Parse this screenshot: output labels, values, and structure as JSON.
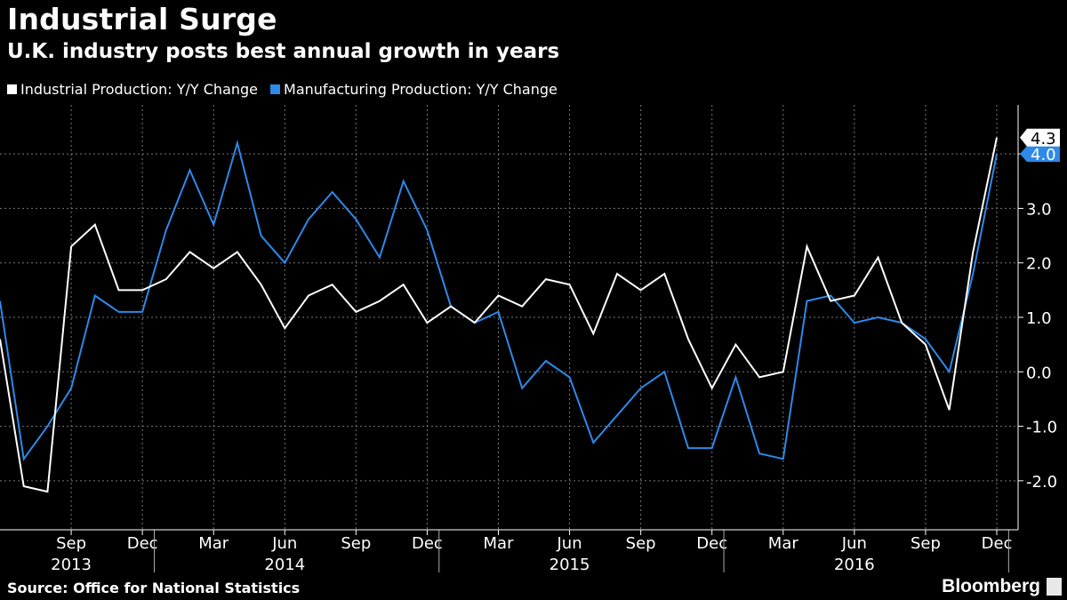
{
  "title": "Industrial Surge",
  "subtitle": "U.K. industry posts best annual growth in years",
  "source": "Source: Office for National Statistics",
  "brand": "Bloomberg",
  "chart_data": {
    "type": "line",
    "title": "Industrial Surge",
    "subtitle": "U.K. industry posts best annual growth in years",
    "x": [
      "2013-06",
      "2013-07",
      "2013-08",
      "2013-09",
      "2013-10",
      "2013-11",
      "2013-12",
      "2014-01",
      "2014-02",
      "2014-03",
      "2014-04",
      "2014-05",
      "2014-06",
      "2014-07",
      "2014-08",
      "2014-09",
      "2014-10",
      "2014-11",
      "2014-12",
      "2015-01",
      "2015-02",
      "2015-03",
      "2015-04",
      "2015-05",
      "2015-06",
      "2015-07",
      "2015-08",
      "2015-09",
      "2015-10",
      "2015-11",
      "2015-12",
      "2016-01",
      "2016-02",
      "2016-03",
      "2016-04",
      "2016-05",
      "2016-06",
      "2016-07",
      "2016-08",
      "2016-09",
      "2016-10",
      "2016-11",
      "2016-12"
    ],
    "series": [
      {
        "name": "Industrial Production: Y/Y Change",
        "color": "#ffffff",
        "values": [
          0.6,
          -2.1,
          -2.2,
          2.3,
          2.7,
          1.5,
          1.5,
          1.7,
          2.2,
          1.9,
          2.2,
          1.6,
          0.8,
          1.4,
          1.6,
          1.1,
          1.3,
          1.6,
          0.9,
          1.2,
          0.9,
          1.4,
          1.2,
          1.7,
          1.6,
          0.7,
          1.8,
          1.5,
          1.8,
          0.6,
          -0.3,
          0.5,
          -0.1,
          0.0,
          2.3,
          1.3,
          1.4,
          2.1,
          0.9,
          0.5,
          -0.7,
          2.2,
          4.3
        ]
      },
      {
        "name": "Manufacturing Production: Y/Y Change",
        "color": "#2e89e8",
        "values": [
          1.3,
          -1.6,
          -1.0,
          -0.3,
          1.4,
          1.1,
          1.1,
          2.6,
          3.7,
          2.7,
          4.2,
          2.5,
          2.0,
          2.8,
          3.3,
          2.8,
          2.1,
          3.5,
          2.6,
          1.2,
          0.9,
          1.1,
          -0.3,
          0.2,
          -0.1,
          -1.3,
          -0.8,
          -0.3,
          0.0,
          -1.4,
          -1.4,
          -0.1,
          -1.5,
          -1.6,
          1.3,
          1.4,
          0.9,
          1.0,
          0.9,
          0.6,
          0.0,
          1.8,
          4.0
        ]
      }
    ],
    "y_ticks": [
      "4.0",
      "3.0",
      "2.0",
      "1.0",
      "0.0",
      "-1.0",
      "-2.0"
    ],
    "y_tick_values": [
      4,
      3,
      2,
      1,
      0,
      -1,
      -2
    ],
    "ylim": [
      -2.9,
      4.9
    ],
    "x_ticks": [
      {
        "label": "Sep",
        "index": 3
      },
      {
        "label": "Dec",
        "index": 6
      },
      {
        "label": "Mar",
        "index": 9
      },
      {
        "label": "Jun",
        "index": 12
      },
      {
        "label": "Sep",
        "index": 15
      },
      {
        "label": "Dec",
        "index": 18
      },
      {
        "label": "Mar",
        "index": 21
      },
      {
        "label": "Jun",
        "index": 24
      },
      {
        "label": "Sep",
        "index": 27
      },
      {
        "label": "Dec",
        "index": 30
      },
      {
        "label": "Mar",
        "index": 33
      },
      {
        "label": "Jun",
        "index": 36
      },
      {
        "label": "Sep",
        "index": 39
      },
      {
        "label": "Dec",
        "index": 42
      }
    ],
    "year_labels": [
      {
        "label": "2013",
        "center_index": 3
      },
      {
        "label": "2014",
        "center_index": 12
      },
      {
        "label": "2015",
        "center_index": 24
      },
      {
        "label": "2016",
        "center_index": 36
      }
    ],
    "year_separators": [
      6.5,
      18.5,
      30.5,
      42.5
    ],
    "end_labels": [
      "4.3",
      "4.0"
    ],
    "grid": true
  }
}
